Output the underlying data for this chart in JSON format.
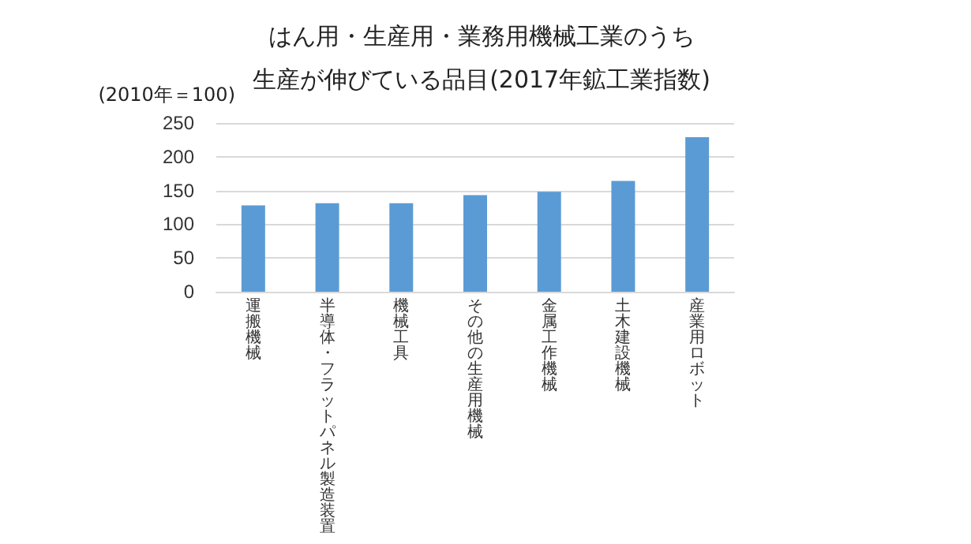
{
  "chart_data": {
    "type": "bar",
    "title": "はん用・生産用・業務用機械工業のうち",
    "subtitle": "生産が伸びている品目(2017年鉱工業指数)",
    "ylabel": "(2010年＝100)",
    "categories": [
      "運搬機械",
      "半導体・フラットパネル製造装置",
      "機械工具",
      "その他の生産用機械",
      "金属工作機械",
      "土木建設機械",
      "産業用ロボット"
    ],
    "values": [
      128,
      131,
      131,
      143,
      148,
      164,
      229
    ],
    "color": "#5b9bd5",
    "ylim": [
      0,
      250
    ],
    "yticks": [
      0,
      50,
      100,
      150,
      200,
      250
    ],
    "grid": "y"
  }
}
